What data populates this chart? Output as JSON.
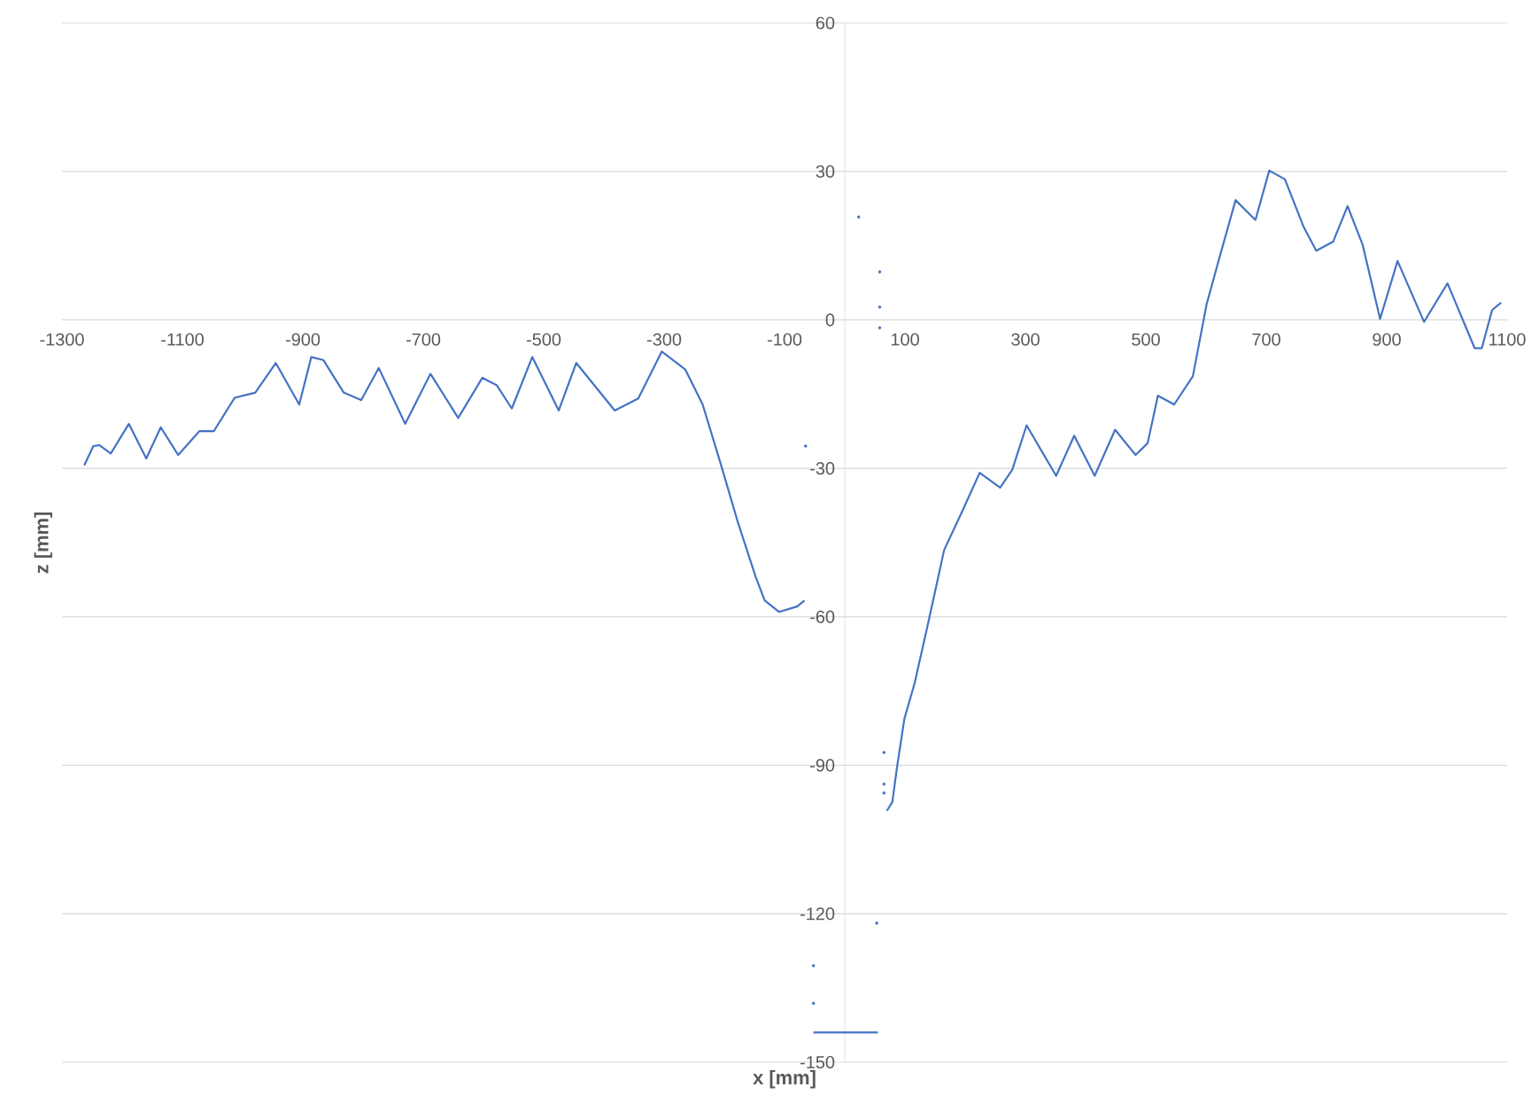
{
  "chart_data": {
    "type": "line",
    "xlabel": "x [mm]",
    "ylabel": "z [mm]",
    "xlim": [
      -1300,
      1100
    ],
    "ylim": [
      -150,
      60
    ],
    "xticks": [
      -1300,
      -1100,
      -900,
      -700,
      -500,
      -300,
      -100,
      100,
      300,
      500,
      700,
      900,
      1100
    ],
    "yticks": [
      -150,
      -120,
      -90,
      -60,
      -30,
      0,
      30,
      60
    ],
    "grid": "y",
    "series": [
      {
        "color": "#4472c4",
        "marker": "none",
        "x": [
          -1263,
          -1248,
          -1238,
          -1219,
          -1189,
          -1160,
          -1136,
          -1107,
          -1072,
          -1048,
          -1013,
          -979,
          -945,
          -906,
          -886,
          -866,
          -832,
          -803,
          -774,
          -730,
          -688,
          -642,
          -602,
          -578,
          -553,
          -519,
          -475,
          -446,
          -382,
          -343,
          -304,
          -265,
          -236,
          -206,
          -177,
          -148,
          -133,
          -109,
          -79,
          -67
        ],
        "values": [
          -29.4,
          -25.5,
          -25.3,
          -27,
          -21,
          -28,
          -21.7,
          -27.3,
          -22.5,
          -22.5,
          -15.7,
          -14.7,
          -8.7,
          -17.1,
          -7.5,
          -8.1,
          -14.7,
          -16.2,
          -9.7,
          -21,
          -10.9,
          -19.8,
          -11.7,
          -13.2,
          -17.9,
          -7.5,
          -18.3,
          -8.7,
          -18.3,
          -15.9,
          -6.4,
          -10,
          -17.1,
          -29.1,
          -41.1,
          -51.9,
          -56.7,
          -59,
          -57.9,
          -56.7
        ]
      },
      {
        "color": "#4472c4",
        "marker": "none",
        "x": [
          70,
          79,
          87,
          99,
          116,
          136,
          151,
          165,
          195,
          224,
          258,
          278,
          302,
          351,
          381,
          415,
          449,
          483,
          503,
          520,
          547,
          578,
          601,
          620,
          649,
          682,
          705,
          731,
          762,
          783,
          811,
          835,
          860,
          889,
          918,
          962,
          1001,
          1046,
          1058,
          1075,
          1090
        ],
        "values": [
          -99.2,
          -97.4,
          -90.2,
          -80.6,
          -73.4,
          -62.6,
          -54.3,
          -46.5,
          -38.7,
          -30.9,
          -33.9,
          -30.3,
          -21.3,
          -31.5,
          -23.4,
          -31.5,
          -22.2,
          -27.3,
          -24.9,
          -15.3,
          -17.1,
          -11.4,
          3.2,
          11.6,
          24.2,
          20.2,
          30.2,
          28.4,
          18.8,
          14,
          15.8,
          23,
          15.2,
          0.2,
          11.9,
          -0.4,
          7.4,
          -5.7,
          -5.7,
          2,
          3.5
        ]
      },
      {
        "color": "#4472c4",
        "marker": "none",
        "x": [
          -52,
          55
        ],
        "values": [
          -144,
          -144
        ]
      },
      {
        "type": "scatter",
        "color": "#4472c4",
        "marker": "circle",
        "x": [
          -65,
          23,
          58,
          58,
          58,
          65,
          65,
          65,
          53,
          -52,
          -52
        ],
        "values": [
          -25.5,
          20.8,
          9.7,
          2.6,
          -1.6,
          -87.4,
          -93.8,
          -95.6,
          -121.9,
          -130.5,
          -138.1
        ]
      }
    ]
  }
}
